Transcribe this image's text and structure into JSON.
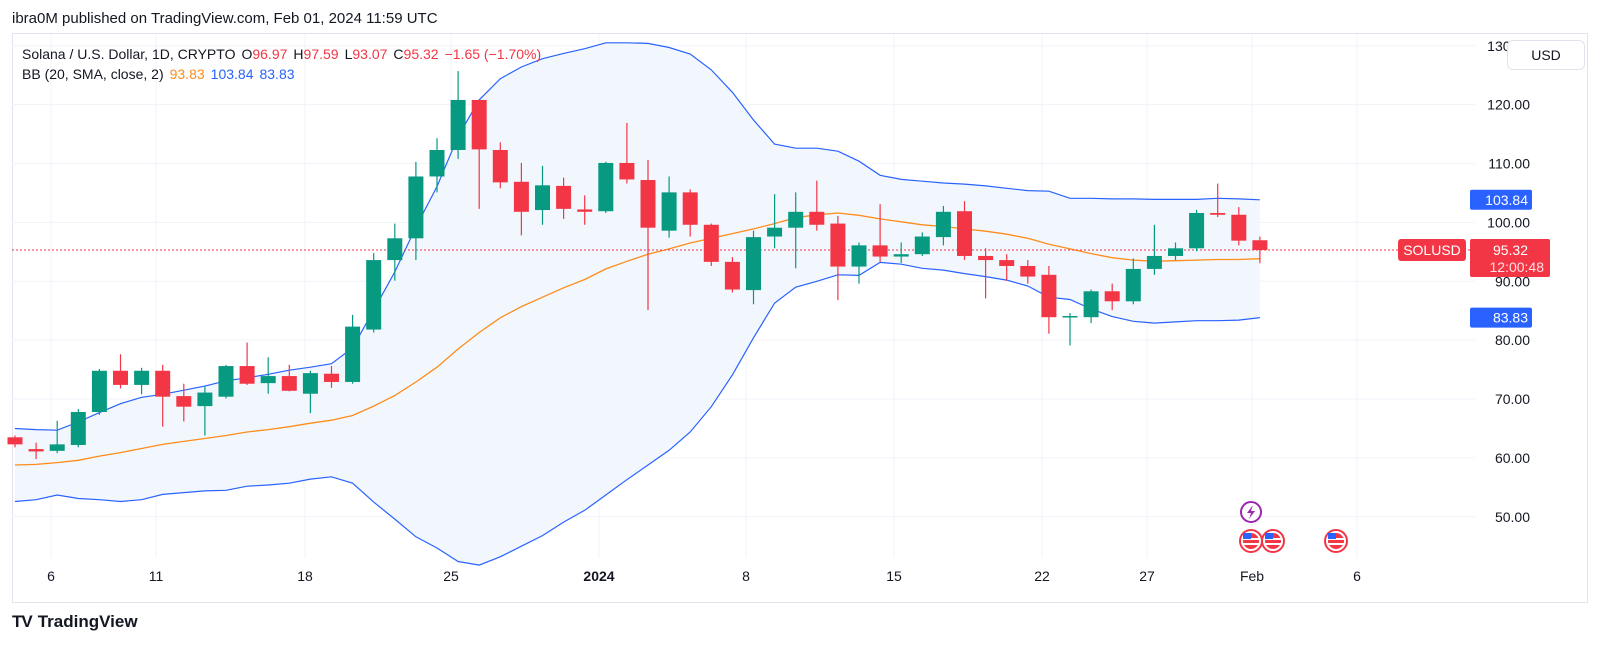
{
  "publication": "ibra0M published on TradingView.com, Feb 01, 2024 11:59 UTC",
  "legend": {
    "symbol": "Solana / U.S. Dollar, 1D, CRYPTO",
    "open_label": "O",
    "open": "96.97",
    "high_label": "H",
    "high": "97.59",
    "low_label": "L",
    "low": "93.07",
    "close_label": "C",
    "close": "95.32",
    "change": "−1.65 (−1.70%)",
    "bb_label": "BB (20, SMA, close, 2)",
    "bb_mid": "93.83",
    "bb_upper": "103.84",
    "bb_lower": "83.83"
  },
  "currency_button": "USD",
  "footer": {
    "logo": "TV",
    "brand": "TradingView"
  },
  "colors": {
    "up": "#089981",
    "down": "#f23645",
    "basis": "#ff8c1a",
    "band": "#2962ff",
    "fill": "#f1f7fd"
  },
  "chart_data": {
    "type": "candlestick",
    "ylim": [
      43,
      132
    ],
    "y_ticks": [
      "50.00",
      "60.00",
      "70.00",
      "80.00",
      "90.00",
      "100.00",
      "110.00",
      "120.00",
      "130.00"
    ],
    "x_ticks": [
      "6",
      "11",
      "18",
      "25",
      "2024",
      "8",
      "15",
      "22",
      "27",
      "Feb",
      "6"
    ],
    "last_price_label": {
      "symbol": "SOLUSD",
      "price": "95.32",
      "countdown": "12:00:48"
    },
    "price_labels": {
      "upper": "103.84",
      "basis": "93.83",
      "lower": "83.83"
    },
    "candles": [
      {
        "x": "Dec 3",
        "o": 63.5,
        "h": 63.8,
        "l": 61.8,
        "c": 62.3
      },
      {
        "x": "Dec 4",
        "o": 61.5,
        "h": 62.6,
        "l": 59.8,
        "c": 61.1
      },
      {
        "x": "Dec 5",
        "o": 61.2,
        "h": 66.3,
        "l": 60.8,
        "c": 62.3
      },
      {
        "x": "Dec 6",
        "o": 62.2,
        "h": 68.3,
        "l": 61.8,
        "c": 67.8
      },
      {
        "x": "Dec 7",
        "o": 67.8,
        "h": 75.1,
        "l": 67.3,
        "c": 74.8
      },
      {
        "x": "Dec 8",
        "o": 74.8,
        "h": 77.6,
        "l": 71.8,
        "c": 72.4
      },
      {
        "x": "Dec 9",
        "o": 72.4,
        "h": 75.3,
        "l": 70.8,
        "c": 74.8
      },
      {
        "x": "Dec 10",
        "o": 74.8,
        "h": 75.8,
        "l": 65.3,
        "c": 70.4
      },
      {
        "x": "Dec 11",
        "o": 70.5,
        "h": 72.6,
        "l": 66.2,
        "c": 68.7
      },
      {
        "x": "Dec 12",
        "o": 68.8,
        "h": 72.1,
        "l": 63.8,
        "c": 71.1
      },
      {
        "x": "Dec 13",
        "o": 70.4,
        "h": 75.8,
        "l": 70.1,
        "c": 75.6
      },
      {
        "x": "Dec 14",
        "o": 75.6,
        "h": 79.6,
        "l": 72.4,
        "c": 72.6
      },
      {
        "x": "Dec 15",
        "o": 72.7,
        "h": 77.1,
        "l": 70.9,
        "c": 73.9
      },
      {
        "x": "Dec 16",
        "o": 73.9,
        "h": 75.8,
        "l": 71.3,
        "c": 71.4
      },
      {
        "x": "Dec 17",
        "o": 70.9,
        "h": 74.8,
        "l": 67.6,
        "c": 74.4
      },
      {
        "x": "Dec 18",
        "o": 74.3,
        "h": 75.6,
        "l": 71.9,
        "c": 72.9
      },
      {
        "x": "Dec 19",
        "o": 72.9,
        "h": 84.3,
        "l": 72.6,
        "c": 82.3
      },
      {
        "x": "Dec 20",
        "o": 81.8,
        "h": 94.8,
        "l": 81.3,
        "c": 93.6
      },
      {
        "x": "Dec 21",
        "o": 93.6,
        "h": 99.8,
        "l": 90.1,
        "c": 97.3
      },
      {
        "x": "Dec 22",
        "o": 97.3,
        "h": 110.3,
        "l": 93.6,
        "c": 107.8
      },
      {
        "x": "Dec 23",
        "o": 107.8,
        "h": 114.3,
        "l": 105.1,
        "c": 112.3
      },
      {
        "x": "Dec 24",
        "o": 112.3,
        "h": 125.7,
        "l": 110.8,
        "c": 120.8
      },
      {
        "x": "Dec 25",
        "o": 120.8,
        "h": 120.8,
        "l": 102.3,
        "c": 112.4
      },
      {
        "x": "Dec 26",
        "o": 112.3,
        "h": 113.6,
        "l": 105.8,
        "c": 106.8
      },
      {
        "x": "Dec 27",
        "o": 106.9,
        "h": 110.1,
        "l": 97.8,
        "c": 101.8
      },
      {
        "x": "Dec 28",
        "o": 102.1,
        "h": 109.6,
        "l": 99.6,
        "c": 106.3
      },
      {
        "x": "Dec 29",
        "o": 106.2,
        "h": 107.6,
        "l": 100.6,
        "c": 102.3
      },
      {
        "x": "Dec 30",
        "o": 102.2,
        "h": 104.6,
        "l": 99.6,
        "c": 101.8
      },
      {
        "x": "Dec 31",
        "o": 101.9,
        "h": 110.3,
        "l": 101.6,
        "c": 110.1
      },
      {
        "x": "Jan 1",
        "o": 110.1,
        "h": 116.9,
        "l": 106.6,
        "c": 107.3
      },
      {
        "x": "Jan 2",
        "o": 107.2,
        "h": 110.6,
        "l": 85.1,
        "c": 99.1
      },
      {
        "x": "Jan 3",
        "o": 98.6,
        "h": 107.8,
        "l": 97.4,
        "c": 105.1
      },
      {
        "x": "Jan 4",
        "o": 105.1,
        "h": 105.6,
        "l": 97.6,
        "c": 99.6
      },
      {
        "x": "Jan 5",
        "o": 99.6,
        "h": 99.8,
        "l": 92.6,
        "c": 93.3
      },
      {
        "x": "Jan 6",
        "o": 93.3,
        "h": 94.1,
        "l": 88.1,
        "c": 88.6
      },
      {
        "x": "Jan 7",
        "o": 88.5,
        "h": 98.6,
        "l": 86.1,
        "c": 97.5
      },
      {
        "x": "Jan 8",
        "o": 97.6,
        "h": 104.8,
        "l": 95.6,
        "c": 99.1
      },
      {
        "x": "Jan 9",
        "o": 99.1,
        "h": 105.1,
        "l": 92.2,
        "c": 101.8
      },
      {
        "x": "Jan 10",
        "o": 101.8,
        "h": 107.1,
        "l": 98.6,
        "c": 99.6
      },
      {
        "x": "Jan 11",
        "o": 99.8,
        "h": 101.1,
        "l": 86.8,
        "c": 92.5
      },
      {
        "x": "Jan 12",
        "o": 92.5,
        "h": 96.6,
        "l": 89.6,
        "c": 96.1
      },
      {
        "x": "Jan 13",
        "o": 96.1,
        "h": 103.1,
        "l": 93.3,
        "c": 94.2
      },
      {
        "x": "Jan 14",
        "o": 94.2,
        "h": 96.6,
        "l": 93.1,
        "c": 94.6
      },
      {
        "x": "Jan 15",
        "o": 94.6,
        "h": 98.3,
        "l": 94.3,
        "c": 97.6
      },
      {
        "x": "Jan 16",
        "o": 97.5,
        "h": 102.8,
        "l": 96.1,
        "c": 101.8
      },
      {
        "x": "Jan 17",
        "o": 101.9,
        "h": 103.6,
        "l": 93.6,
        "c": 94.3
      },
      {
        "x": "Jan 18",
        "o": 94.3,
        "h": 95.6,
        "l": 87.1,
        "c": 93.6
      },
      {
        "x": "Jan 19",
        "o": 93.6,
        "h": 94.6,
        "l": 90.1,
        "c": 92.6
      },
      {
        "x": "Jan 20",
        "o": 92.6,
        "h": 93.6,
        "l": 89.6,
        "c": 90.8
      },
      {
        "x": "Jan 21",
        "o": 91.1,
        "h": 92.6,
        "l": 81.1,
        "c": 83.9
      },
      {
        "x": "Jan 22",
        "o": 83.9,
        "h": 84.6,
        "l": 79.1,
        "c": 84.1
      },
      {
        "x": "Jan 23",
        "o": 83.9,
        "h": 88.6,
        "l": 82.9,
        "c": 88.3
      },
      {
        "x": "Jan 24",
        "o": 88.3,
        "h": 89.6,
        "l": 85.1,
        "c": 86.6
      },
      {
        "x": "Jan 25",
        "o": 86.6,
        "h": 93.9,
        "l": 86.1,
        "c": 92.1
      },
      {
        "x": "Jan 26",
        "o": 92.1,
        "h": 99.6,
        "l": 91.1,
        "c": 94.3
      },
      {
        "x": "Jan 27",
        "o": 94.3,
        "h": 96.6,
        "l": 93.6,
        "c": 95.6
      },
      {
        "x": "Jan 28",
        "o": 95.6,
        "h": 102.1,
        "l": 95.1,
        "c": 101.6
      },
      {
        "x": "Jan 29",
        "o": 101.6,
        "h": 106.6,
        "l": 100.9,
        "c": 101.3
      },
      {
        "x": "Jan 30",
        "o": 101.3,
        "h": 102.6,
        "l": 96.1,
        "c": 96.9
      },
      {
        "x": "Jan 31",
        "o": 96.97,
        "h": 97.59,
        "l": 93.07,
        "c": 95.32
      }
    ],
    "basis": [
      58.8,
      58.9,
      59.2,
      59.6,
      60.3,
      60.9,
      61.6,
      62.3,
      62.8,
      63.3,
      63.8,
      64.4,
      64.8,
      65.3,
      65.9,
      66.4,
      67.2,
      68.8,
      70.6,
      72.9,
      75.4,
      78.5,
      81.3,
      83.8,
      85.7,
      87.3,
      88.9,
      90.3,
      92.1,
      93.4,
      94.6,
      95.5,
      96.5,
      97.3,
      98.1,
      98.9,
      99.8,
      100.8,
      101.3,
      101.6,
      101.2,
      100.6,
      100.1,
      99.6,
      99.3,
      98.9,
      98.5,
      98.0,
      97.3,
      96.3,
      95.5,
      94.7,
      94.0,
      93.6,
      93.4,
      93.5,
      93.6,
      93.7,
      93.7,
      93.83
    ],
    "upper": [
      65.0,
      64.8,
      64.7,
      66.1,
      67.7,
      69.2,
      70.3,
      70.8,
      71.5,
      72.2,
      73.1,
      73.6,
      74.2,
      74.9,
      75.4,
      76.0,
      78.7,
      85.1,
      91.6,
      99.2,
      106.1,
      114.6,
      120.8,
      124.4,
      126.4,
      127.8,
      128.7,
      129.5,
      130.5,
      130.5,
      130.4,
      129.7,
      128.6,
      125.9,
      122.1,
      117.4,
      113.3,
      112.6,
      112.6,
      112.1,
      110.4,
      108.0,
      107.3,
      107.0,
      106.7,
      106.5,
      106.2,
      105.8,
      105.4,
      105.3,
      104.1,
      104.1,
      104.0,
      104.0,
      103.9,
      103.9,
      103.9,
      104.1,
      104.0,
      103.84
    ],
    "lower": [
      52.6,
      52.9,
      53.7,
      53.1,
      52.9,
      52.6,
      52.9,
      53.8,
      54.1,
      54.4,
      54.5,
      55.2,
      55.4,
      55.7,
      56.4,
      56.8,
      55.7,
      52.5,
      49.6,
      46.6,
      44.7,
      42.4,
      41.8,
      43.2,
      45.0,
      46.8,
      49.1,
      51.1,
      53.7,
      56.3,
      58.8,
      61.3,
      64.4,
      68.7,
      74.1,
      80.4,
      86.3,
      89.0,
      90.0,
      91.1,
      91.0,
      93.2,
      92.9,
      92.2,
      91.9,
      91.3,
      90.8,
      90.2,
      89.2,
      87.3,
      86.9,
      85.3,
      84.0,
      83.2,
      82.9,
      83.1,
      83.3,
      83.3,
      83.4,
      83.83
    ]
  }
}
